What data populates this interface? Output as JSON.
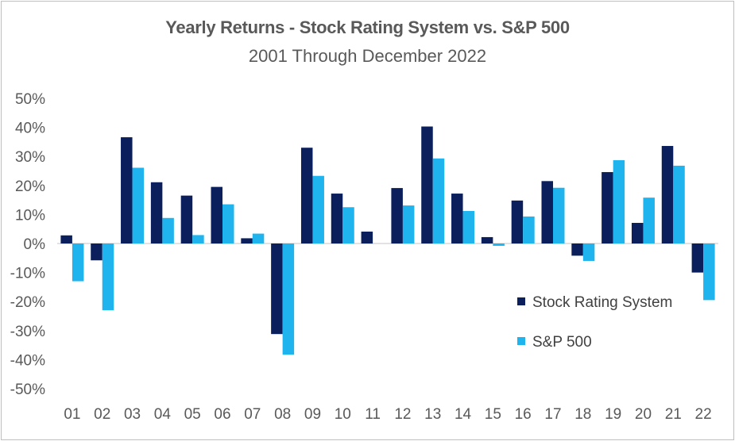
{
  "chart_data": {
    "type": "bar",
    "title": "Yearly Returns - Stock Rating System vs. S&P 500",
    "subtitle": "2001 Through December 2022",
    "categories": [
      "01",
      "02",
      "03",
      "04",
      "05",
      "06",
      "07",
      "08",
      "09",
      "10",
      "11",
      "12",
      "13",
      "14",
      "15",
      "16",
      "17",
      "18",
      "19",
      "20",
      "21",
      "22"
    ],
    "series": [
      {
        "name": "Stock Rating System",
        "color": "#0a1f5c",
        "values": [
          2.8,
          -5.8,
          36.6,
          21.1,
          16.5,
          19.5,
          1.8,
          -31.2,
          33.0,
          17.2,
          4.1,
          19.1,
          40.3,
          17.2,
          2.2,
          14.8,
          21.5,
          -4.2,
          24.6,
          7.1,
          33.6,
          -10.0
        ]
      },
      {
        "name": "S&P 500",
        "color": "#1fb4ee",
        "values": [
          -13.0,
          -23.0,
          26.1,
          8.8,
          2.9,
          13.5,
          3.4,
          -38.3,
          23.3,
          12.5,
          0.0,
          13.1,
          29.3,
          11.2,
          -0.8,
          9.3,
          19.2,
          -6.0,
          28.7,
          15.8,
          26.8,
          -19.5
        ]
      }
    ],
    "ylim": [
      -50,
      50
    ],
    "yticks": [
      50,
      40,
      30,
      20,
      10,
      0,
      -10,
      -20,
      -30,
      -40,
      -50
    ],
    "ytick_labels": [
      "50%",
      "40%",
      "30%",
      "20%",
      "10%",
      "0%",
      "-10%",
      "-20%",
      "-30%",
      "-40%",
      "-50%"
    ],
    "xlabel": "",
    "ylabel": "",
    "legend_position": "right-lower",
    "grid": false
  }
}
